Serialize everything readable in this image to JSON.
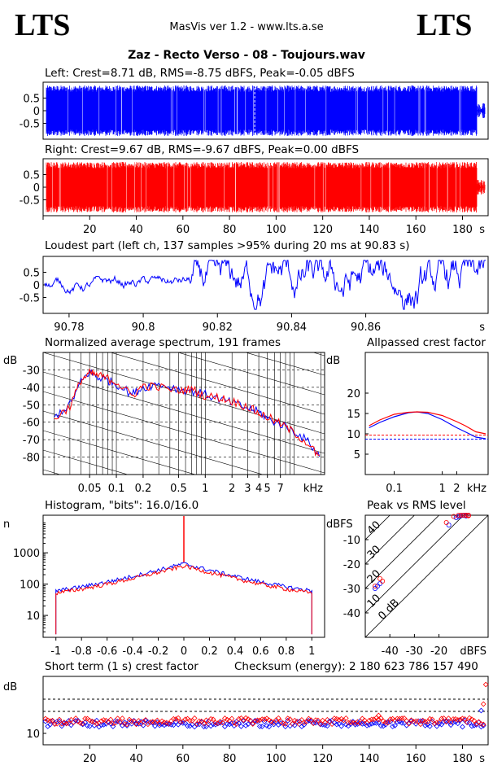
{
  "header": {
    "logo_left": "LTS",
    "logo_right": "LTS",
    "app": "MasVis ver 1.2 - www.lts.a.se",
    "file": "Zaz - Recto Verso - 08 - Toujours.wav"
  },
  "colors": {
    "left": "#0000ff",
    "right": "#ff0000"
  },
  "chart_data": [
    {
      "id": "left",
      "type": "line",
      "title": "Left: Crest=8.71 dB, RMS=-8.75 dBFS, Peak=-0.05 dBFS",
      "ylim": [
        -1,
        1
      ],
      "yticks": [
        "0.5",
        "0",
        "-0.5"
      ],
      "marker_x": 90.83,
      "xlim": [
        0,
        191
      ]
    },
    {
      "id": "right",
      "type": "line",
      "title": "Right: Crest=9.67 dB, RMS=-9.67 dBFS, Peak=0.00 dBFS",
      "ylim": [
        -1,
        1
      ],
      "yticks": [
        "0.5",
        "0",
        "-0.5"
      ],
      "xlim": [
        0,
        191
      ],
      "xticks": [
        "20",
        "40",
        "60",
        "80",
        "100",
        "120",
        "140",
        "160",
        "180"
      ],
      "xunit": "s"
    },
    {
      "id": "loudest",
      "type": "line",
      "title": "Loudest part (left  ch, 137 samples >95% during 20 ms at 90.83 s)",
      "xlim": [
        90.773,
        90.893
      ],
      "ylim": [
        -1,
        1
      ],
      "yticks": [
        "0.5",
        "0",
        "-0.5"
      ],
      "xticks": [
        "90.78",
        "90.8",
        "90.82",
        "90.84",
        "90.86"
      ],
      "xunit": "s"
    },
    {
      "id": "spectrum",
      "type": "line",
      "title": "Normalized average spectrum, 191 frames",
      "ylabel": "dB",
      "yticks": [
        "-30",
        "-40",
        "-50",
        "-60",
        "-70",
        "-80"
      ],
      "xticks": [
        "0.05",
        "0.1",
        "0.2",
        "0.5",
        "1",
        "2",
        "3",
        "4",
        "5",
        "7"
      ],
      "xunit": "kHz",
      "series": [
        {
          "name": "",
          "x": [
            0.02,
            0.03,
            0.04,
            0.05,
            0.06,
            0.08,
            0.1,
            0.15,
            0.2,
            0.3,
            0.5,
            0.7,
            1,
            1.5,
            2,
            3,
            4,
            5,
            7,
            10,
            15,
            20
          ],
          "values": [
            -57,
            -50,
            -37,
            -31,
            -34,
            -36,
            -38,
            -44,
            -40,
            -38,
            -41,
            -42,
            -44,
            -47,
            -49,
            -52,
            -54,
            -58,
            -61,
            -65,
            -72,
            -81
          ]
        },
        {
          "name": "",
          "x": [
            0.02,
            0.03,
            0.04,
            0.05,
            0.06,
            0.08,
            0.1,
            0.15,
            0.2,
            0.3,
            0.5,
            0.7,
            1,
            1.5,
            2,
            3,
            4,
            5,
            7,
            10,
            15,
            20
          ],
          "values": [
            -58,
            -51,
            -36,
            -32,
            -33,
            -35,
            -37,
            -45,
            -39,
            -40,
            -42,
            -41,
            -45,
            -46,
            -48,
            -51,
            -55,
            -57,
            -61,
            -66,
            -73,
            -82
          ]
        }
      ]
    },
    {
      "id": "allpassed",
      "type": "line",
      "title": "Allpassed crest factor",
      "ylabel": "dB",
      "yticks": [
        "20",
        "15",
        "10",
        "5"
      ],
      "xticks": [
        "0.1",
        "1",
        "2"
      ],
      "xunit": "kHz",
      "series": [
        {
          "name": "",
          "x": [
            0.03,
            0.05,
            0.1,
            0.2,
            0.3,
            0.5,
            1,
            2,
            3,
            5,
            8
          ],
          "values": [
            11.5,
            12.8,
            14.2,
            15.2,
            15.4,
            15.0,
            13.5,
            11.5,
            10.5,
            9.2,
            8.8
          ]
        },
        {
          "name": "",
          "x": [
            0.03,
            0.05,
            0.1,
            0.2,
            0.3,
            0.5,
            1,
            2,
            3,
            5,
            8
          ],
          "values": [
            12.0,
            13.4,
            14.8,
            15.3,
            15.4,
            15.3,
            14.5,
            13.0,
            12.0,
            10.5,
            10.0
          ]
        }
      ],
      "reference_lines": [
        9.67,
        8.71
      ]
    },
    {
      "id": "histogram",
      "type": "line",
      "title": "Histogram, \"bits\": 16.0/16.0",
      "ylabel": "n",
      "yscale": "log",
      "yticks": [
        "1000",
        "100",
        "10"
      ],
      "xticks": [
        "-1",
        "-0.8",
        "-0.6",
        "-0.4",
        "-0.2",
        "0",
        "0.2",
        "0.4",
        "0.6",
        "0.8",
        "1"
      ]
    },
    {
      "id": "peak_vs_rms",
      "type": "scatter",
      "title": "Peak vs RMS level",
      "ylabel": "dBFS",
      "yticks": [
        "-10",
        "-20",
        "-30",
        "-40"
      ],
      "xticks": [
        "-40",
        "-30",
        "-20"
      ],
      "xlabel": "dBFS",
      "diagonal_labels": [
        "40",
        "30",
        "20",
        "10",
        "0 dB"
      ],
      "series": [
        {
          "name": "",
          "x": [
            -46,
            -45,
            -44,
            -16,
            -13,
            -12,
            -11,
            -10,
            -10,
            -9,
            -9,
            -8
          ],
          "values": [
            -30,
            -29,
            -28,
            -4,
            -1,
            -0.5,
            -0.2,
            -0.1,
            0,
            0,
            -0.3,
            0
          ]
        },
        {
          "name": "",
          "x": [
            -46,
            -43,
            -44,
            -17,
            -14,
            -12,
            -11,
            -10,
            -9,
            -9,
            -8,
            -8
          ],
          "values": [
            -29,
            -27,
            -26,
            -3,
            -0.5,
            0,
            0,
            0,
            0,
            0,
            -0.2,
            0
          ]
        }
      ]
    },
    {
      "id": "short_term_crest",
      "type": "scatter",
      "title": "Short term (1 s) crest factor",
      "checksum": "Checksum (energy):  2 180 623 786 157 490",
      "ylabel": "dB",
      "yticks": [
        "10"
      ],
      "xticks": [
        "20",
        "40",
        "60",
        "80",
        "100",
        "120",
        "140",
        "160",
        "180"
      ],
      "xunit": "s",
      "reference_lines": [
        9.67,
        8.71
      ]
    }
  ]
}
